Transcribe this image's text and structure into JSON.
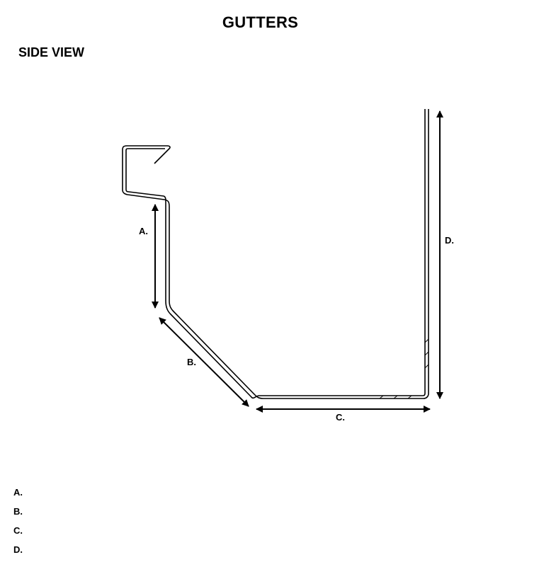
{
  "title": "GUTTERS",
  "subtitle": "SIDE VIEW",
  "dimension_labels": {
    "a": "A.",
    "b": "B.",
    "c": "C.",
    "d": "D."
  },
  "legend": [
    "A.",
    "B.",
    "C.",
    "D."
  ],
  "colors": {
    "line": "#000000",
    "background": "#ffffff"
  }
}
